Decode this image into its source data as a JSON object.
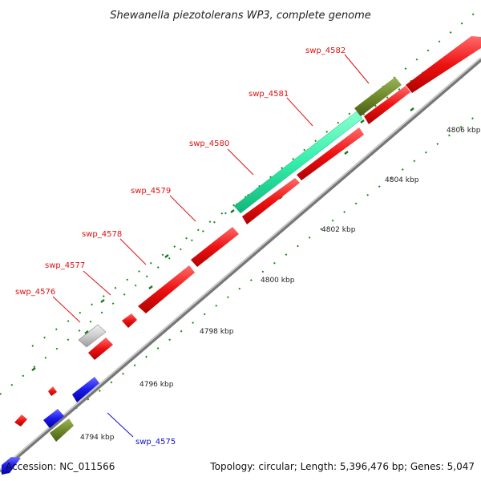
{
  "title": "Shewanella piezotolerans WP3, complete genome",
  "accession": "Accession: NC_011566",
  "summary": "Topology: circular; Length: 5,396,476 bp; Genes: 5,047",
  "kbp_labels": [
    "4794 kbp",
    "4796 kbp",
    "4798 kbp",
    "4800 kbp",
    "4802 kbp",
    "4804 kbp",
    "4806 kbp"
  ],
  "gene_labels": [
    "swp_4576",
    "swp_4577",
    "swp_4578",
    "swp_4579",
    "swp_4580",
    "swp_4581",
    "swp_4582",
    "swp_4575"
  ],
  "colors": {
    "red": "#ee1111",
    "blue": "#1a1aee",
    "olive": "#6f8a2a",
    "teal": "#33eeaa",
    "grey": "#cccccc",
    "backbone": "#999999",
    "tick": "#1a8c1a",
    "label_red": "#dd1111",
    "label_blue": "#1111cc"
  }
}
